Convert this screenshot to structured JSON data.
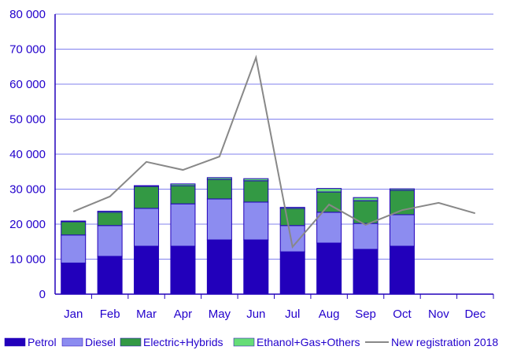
{
  "chart_data": {
    "type": "bar",
    "stacked": true,
    "categories": [
      "Jan",
      "Feb",
      "Mar",
      "Apr",
      "May",
      "Jun",
      "Jul",
      "Aug",
      "Sep",
      "Oct",
      "Nov",
      "Dec"
    ],
    "ylim": [
      0,
      80000
    ],
    "yticks": [
      0,
      10000,
      20000,
      30000,
      40000,
      50000,
      60000,
      70000,
      80000
    ],
    "ytick_labels": [
      "0",
      "10 000",
      "20 000",
      "30 000",
      "40 000",
      "50 000",
      "60 000",
      "70 000",
      "80 000"
    ],
    "grid": true,
    "legend_position": "bottom",
    "series": [
      {
        "name": "Petrol",
        "color": "#2200bb",
        "values": [
          8900,
          10800,
          13700,
          13700,
          15500,
          15500,
          12100,
          14600,
          12800,
          13700,
          null,
          null
        ]
      },
      {
        "name": "Diesel",
        "color": "#8c8cf0",
        "values": [
          8000,
          8800,
          10800,
          12100,
          11700,
          10800,
          7500,
          8800,
          7400,
          9000,
          null,
          null
        ]
      },
      {
        "name": "Electric+Hybrids",
        "color": "#339944",
        "values": [
          3800,
          3800,
          6300,
          5200,
          5600,
          6100,
          4900,
          5800,
          6500,
          7000,
          null,
          null
        ]
      },
      {
        "name": "Ethanol+Gas+Others",
        "color": "#66dd77",
        "values": [
          200,
          300,
          200,
          500,
          500,
          600,
          300,
          1000,
          900,
          400,
          null,
          null
        ]
      }
    ],
    "line_series": {
      "name": "New registration 2018",
      "color": "#888888",
      "values": [
        23600,
        27900,
        37800,
        35500,
        39300,
        67600,
        13500,
        25600,
        19800,
        24000,
        26100,
        23100
      ]
    }
  }
}
